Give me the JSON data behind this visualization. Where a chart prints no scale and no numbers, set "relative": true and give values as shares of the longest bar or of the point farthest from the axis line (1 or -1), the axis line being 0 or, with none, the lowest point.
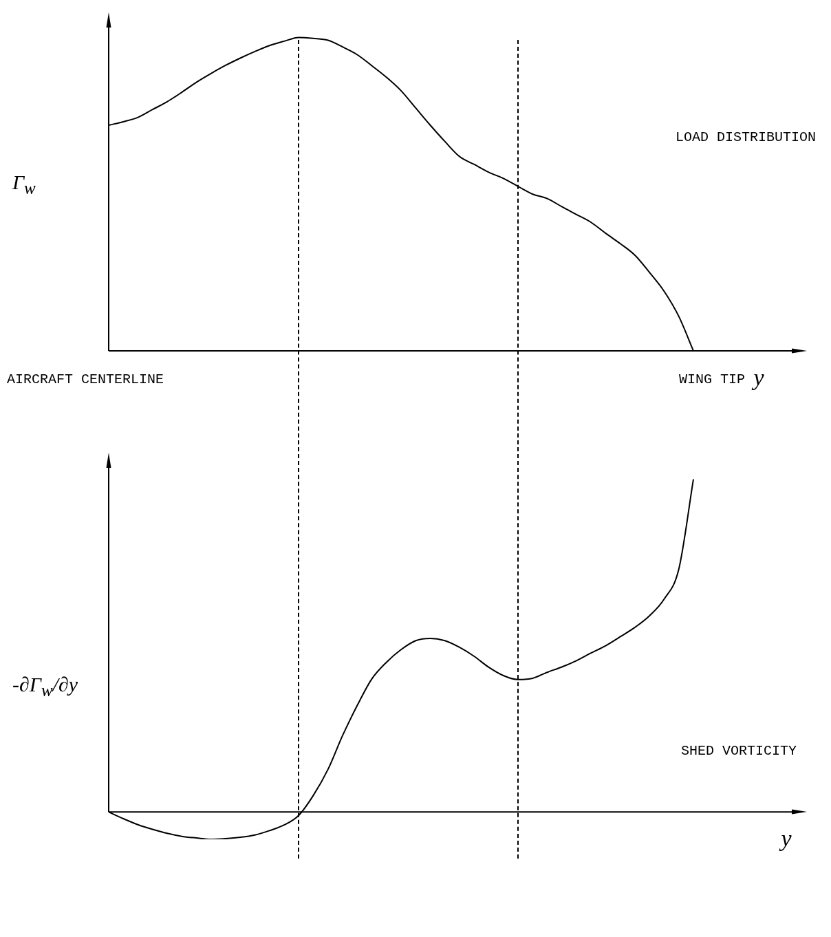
{
  "chart_data": [
    {
      "type": "line",
      "relative": true,
      "ylabel": "Γ$_{w}$",
      "xlabel": "y",
      "annotations": [
        "LOAD DISTRIBUTION",
        "AIRCRAFT CENTERLINE",
        "WING TIP"
      ],
      "grid": false,
      "legend": false,
      "marker": "none",
      "line_style": "solid",
      "categories": [
        null,
        null,
        null,
        null,
        null,
        null,
        null,
        null,
        null,
        null,
        null,
        null,
        null,
        null,
        null,
        null,
        null,
        null,
        null,
        null,
        null,
        null,
        null,
        null,
        null,
        null,
        null,
        null,
        null,
        null,
        null,
        null,
        null,
        null,
        null,
        null,
        null,
        null,
        null,
        null,
        null
      ],
      "series": [
        {
          "color": "#000000",
          "values": [
            0.72,
            0.731,
            0.745,
            0.77,
            0.795,
            0.825,
            0.857,
            0.885,
            0.911,
            0.934,
            0.955,
            0.974,
            0.988,
            1,
            0.997,
            0.991,
            0.97,
            0.945,
            0.91,
            0.873,
            0.83,
            0.775,
            0.72,
            0.668,
            0.62,
            0.595,
            0.57,
            0.55,
            0.525,
            0.5,
            0.486,
            0.46,
            0.435,
            0.41,
            0.375,
            0.342,
            0.305,
            0.25,
            0.19,
            0.11,
            0
          ]
        }
      ]
    },
    {
      "type": "line",
      "relative": true,
      "ylabel": "-∂Γ$_{w}$/∂y",
      "xlabel": "y",
      "annotations": [
        "SHED VORTICITY"
      ],
      "grid": false,
      "legend": false,
      "marker": "none",
      "line_style": "solid",
      "categories": [
        null,
        null,
        null,
        null,
        null,
        null,
        null,
        null,
        null,
        null,
        null,
        null,
        null,
        null,
        null,
        null,
        null,
        null,
        null,
        null,
        null,
        null,
        null,
        null,
        null,
        null,
        null,
        null,
        null,
        null,
        null,
        null,
        null,
        null,
        null,
        null,
        null,
        null,
        null,
        null,
        null
      ],
      "series": [
        {
          "color": "#000000",
          "values": [
            0,
            -0.02,
            -0.038,
            -0.052,
            -0.064,
            -0.073,
            -0.078,
            -0.082,
            -0.08,
            -0.076,
            -0.069,
            -0.056,
            -0.039,
            -0.01,
            0.05,
            0.128,
            0.23,
            0.32,
            0.4,
            0.45,
            0.488,
            0.515,
            0.522,
            0.515,
            0.495,
            0.468,
            0.435,
            0.41,
            0.398,
            0.402,
            0.42,
            0.436,
            0.455,
            0.478,
            0.5,
            0.527,
            0.555,
            0.59,
            0.64,
            0.73,
            1
          ]
        }
      ]
    }
  ]
}
